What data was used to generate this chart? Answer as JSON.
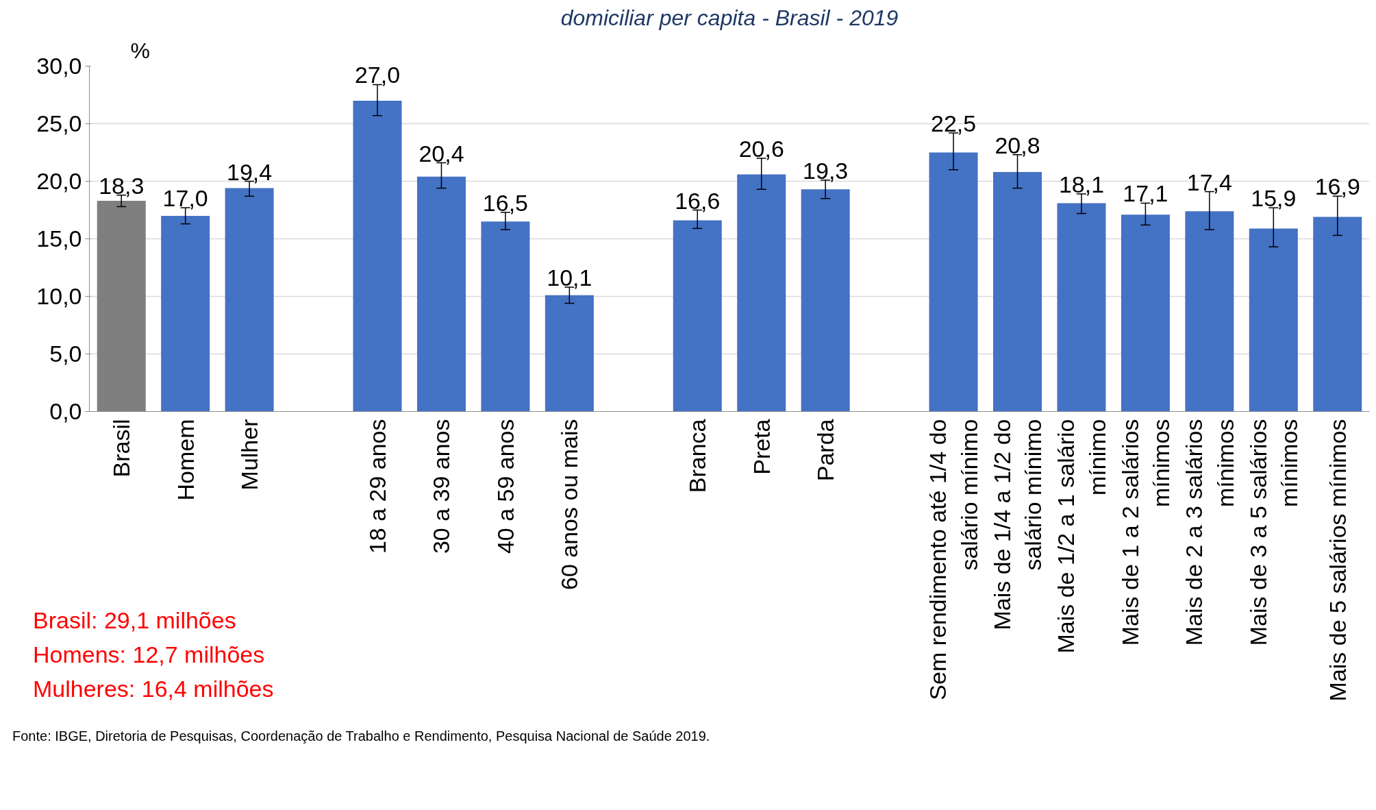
{
  "chart_data": {
    "type": "bar",
    "title": "domiciliar per capita - Brasil - 2019",
    "ylabel": "%",
    "categories": [
      "Brasil",
      "Homem",
      "Mulher",
      null,
      "18 a 29 anos",
      "30 a 39 anos",
      "40 a 59 anos",
      "60 anos ou mais",
      null,
      "Branca",
      "Preta",
      "Parda",
      null,
      "Sem rendimento até 1/4 do salário mínimo",
      "Mais de 1/4 a 1/2 do salário mínimo",
      "Mais de 1/2 a 1 salário mínimo",
      "Mais de 1 a 2 salários mínimos",
      "Mais de 2 a 3 salários mínimos",
      "Mais de 3 a 5 salários mínimos",
      "Mais de 5 salários mínimos"
    ],
    "values": [
      18.3,
      17.0,
      19.4,
      null,
      27.0,
      20.4,
      16.5,
      10.1,
      null,
      16.6,
      20.6,
      19.3,
      null,
      22.5,
      20.8,
      18.1,
      17.1,
      17.4,
      15.9,
      16.9
    ],
    "colors": [
      "#7f7f7f",
      "#4472c4",
      "#4472c4",
      null,
      "#4472c4",
      "#4472c4",
      "#4472c4",
      "#4472c4",
      null,
      "#4472c4",
      "#4472c4",
      "#4472c4",
      null,
      "#4472c4",
      "#4472c4",
      "#4472c4",
      "#4472c4",
      "#4472c4",
      "#4472c4",
      "#4472c4"
    ],
    "errors": [
      [
        17.8,
        18.8
      ],
      [
        16.3,
        17.7
      ],
      [
        18.7,
        20.0
      ],
      null,
      [
        25.7,
        28.4
      ],
      [
        19.4,
        21.6
      ],
      [
        15.8,
        17.3
      ],
      [
        9.4,
        10.8
      ],
      null,
      [
        15.9,
        17.5
      ],
      [
        19.3,
        22.0
      ],
      [
        18.5,
        20.1
      ],
      null,
      [
        21.0,
        24.2
      ],
      [
        19.4,
        22.3
      ],
      [
        17.2,
        18.9
      ],
      [
        16.2,
        18.1
      ],
      [
        15.8,
        19.1
      ],
      [
        14.3,
        17.7
      ],
      [
        15.3,
        18.7
      ]
    ],
    "value_labels": [
      "18,3",
      "17,0",
      "19,4",
      null,
      "27,0",
      "20,4",
      "16,5",
      "10,1",
      null,
      "16,6",
      "20,6",
      "19,3",
      null,
      "22,5",
      "20,8",
      "18,1",
      "17,1",
      "17,4",
      "15,9",
      "16,9"
    ],
    "ylim": [
      0,
      30
    ],
    "yticks": [
      {
        "value": 0,
        "label": "0,0"
      },
      {
        "value": 5,
        "label": "5,0"
      },
      {
        "value": 10,
        "label": "10,0"
      },
      {
        "value": 15,
        "label": "15,0"
      },
      {
        "value": 20,
        "label": "20,0"
      },
      {
        "value": 25,
        "label": "25,0"
      },
      {
        "value": 30,
        "label": "30,0"
      }
    ],
    "grid": "y",
    "annotations": [
      "Brasil: 29,1 milhões",
      "Homens: 12,7 milhões",
      "Mulheres: 16,4 milhões",
      "Fonte: IBGE, Diretoria de Pesquisas, Coordenação de Trabalho e Rendimento, Pesquisa Nacional de Saúde 2019."
    ]
  }
}
